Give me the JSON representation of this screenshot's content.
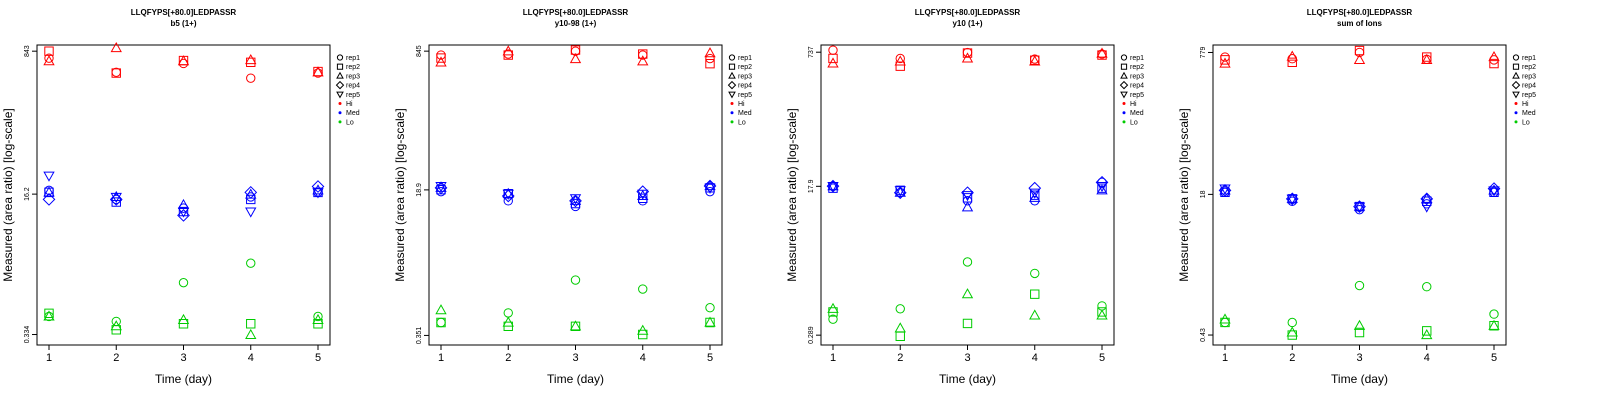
{
  "figure": {
    "xlabel": "Time (day)",
    "ylabel": "Measured (area ratio) [log-scale]"
  },
  "legend": {
    "reps": [
      {
        "label": "rep1",
        "shape": "circle"
      },
      {
        "label": "rep2",
        "shape": "square"
      },
      {
        "label": "rep3",
        "shape": "triangle-up"
      },
      {
        "label": "rep4",
        "shape": "diamond"
      },
      {
        "label": "rep5",
        "shape": "triangle-down"
      }
    ],
    "levels": [
      {
        "label": "Hi",
        "color": "#ff0000"
      },
      {
        "label": "Med",
        "color": "#0000ff"
      },
      {
        "label": "Lo",
        "color": "#00cc00"
      }
    ]
  },
  "colors": {
    "Hi": "#ff0000",
    "Med": "#0000ff",
    "Lo": "#00cc00",
    "axis": "#000000"
  },
  "chart_data": [
    {
      "type": "scatter",
      "title": "LLQFYPS[+80.0]LEDPASSR",
      "subtitle": "b5 (1+)",
      "xlabel": "Time (day)",
      "ylabel": "Measured (area ratio) [log-scale]",
      "x": [
        1,
        2,
        3,
        4,
        5
      ],
      "y_scale": "log",
      "y_ticks": [
        "0.334",
        "16.2",
        "843"
      ],
      "ylim": [
        0.25,
        1000
      ],
      "series": [
        {
          "level": "Hi",
          "rep": "rep1",
          "values": [
            695,
            470,
            600,
            400,
            460
          ]
        },
        {
          "level": "Hi",
          "rep": "rep2",
          "values": [
            843,
            460,
            650,
            620,
            480
          ]
        },
        {
          "level": "Hi",
          "rep": "rep3",
          "values": [
            640,
            920,
            640,
            660,
            470
          ]
        },
        {
          "level": "Med",
          "rep": "rep1",
          "values": [
            18,
            14,
            11,
            15,
            17
          ]
        },
        {
          "level": "Med",
          "rep": "rep2",
          "values": [
            17,
            13,
            10,
            14,
            17
          ]
        },
        {
          "level": "Med",
          "rep": "rep3",
          "values": [
            17,
            15,
            12,
            16,
            18
          ]
        },
        {
          "level": "Med",
          "rep": "rep4",
          "values": [
            14,
            14,
            9,
            17,
            20
          ]
        },
        {
          "level": "Med",
          "rep": "rep5",
          "values": [
            27,
            15,
            10,
            10,
            17
          ]
        },
        {
          "level": "Lo",
          "rep": "rep1",
          "values": [
            0.55,
            0.48,
            1.4,
            2.4,
            0.55
          ]
        },
        {
          "level": "Lo",
          "rep": "rep2",
          "values": [
            0.6,
            0.38,
            0.45,
            0.45,
            0.45
          ]
        },
        {
          "level": "Lo",
          "rep": "rep3",
          "values": [
            0.55,
            0.42,
            0.5,
            0.33,
            0.5
          ]
        }
      ]
    },
    {
      "type": "scatter",
      "title": "LLQFYPS[+80.0]LEDPASSR",
      "subtitle": "y10-98 (1+)",
      "xlabel": "Time (day)",
      "ylabel": "Measured (area ratio) [log-scale]",
      "x": [
        1,
        2,
        3,
        4,
        5
      ],
      "y_scale": "log",
      "y_ticks": [
        "0.351",
        "18.9",
        "845"
      ],
      "ylim": [
        0.27,
        1000
      ],
      "series": [
        {
          "level": "Hi",
          "rep": "rep1",
          "values": [
            760,
            780,
            845,
            760,
            690
          ]
        },
        {
          "level": "Hi",
          "rep": "rep2",
          "values": [
            700,
            760,
            870,
            780,
            600
          ]
        },
        {
          "level": "Hi",
          "rep": "rep3",
          "values": [
            620,
            840,
            680,
            640,
            800
          ]
        },
        {
          "level": "Med",
          "rep": "rep1",
          "values": [
            18,
            14,
            12,
            14,
            18
          ]
        },
        {
          "level": "Med",
          "rep": "rep2",
          "values": [
            19,
            17,
            13,
            15,
            20
          ]
        },
        {
          "level": "Med",
          "rep": "rep3",
          "values": [
            20,
            17,
            14,
            16,
            21
          ]
        },
        {
          "level": "Med",
          "rep": "rep4",
          "values": [
            20,
            16,
            14,
            18,
            21
          ]
        },
        {
          "level": "Med",
          "rep": "rep5",
          "values": [
            21,
            17,
            15,
            17,
            20
          ]
        },
        {
          "level": "Lo",
          "rep": "rep1",
          "values": [
            0.5,
            0.65,
            1.6,
            1.25,
            0.75
          ]
        },
        {
          "level": "Lo",
          "rep": "rep2",
          "values": [
            0.5,
            0.45,
            0.45,
            0.36,
            0.5
          ]
        },
        {
          "level": "Lo",
          "rep": "rep3",
          "values": [
            0.7,
            0.5,
            0.45,
            0.4,
            0.5
          ]
        }
      ]
    },
    {
      "type": "scatter",
      "title": "LLQFYPS[+80.0]LEDPASSR",
      "subtitle": "y10 (1+)",
      "xlabel": "Time (day)",
      "ylabel": "Measured (area ratio) [log-scale]",
      "x": [
        1,
        2,
        3,
        4,
        5
      ],
      "y_scale": "log",
      "y_ticks": [
        "0.289",
        "17.9",
        "737"
      ],
      "ylim": [
        0.22,
        900
      ],
      "series": [
        {
          "level": "Hi",
          "rep": "rep1",
          "values": [
            780,
            620,
            730,
            610,
            700
          ]
        },
        {
          "level": "Hi",
          "rep": "rep2",
          "values": [
            620,
            500,
            720,
            590,
            680
          ]
        },
        {
          "level": "Hi",
          "rep": "rep3",
          "values": [
            540,
            570,
            620,
            570,
            710
          ]
        },
        {
          "level": "Med",
          "rep": "rep1",
          "values": [
            18,
            15,
            12,
            12,
            20
          ]
        },
        {
          "level": "Med",
          "rep": "rep2",
          "values": [
            17,
            16,
            13,
            14,
            17
          ]
        },
        {
          "level": "Med",
          "rep": "rep3",
          "values": [
            18,
            15,
            10,
            13,
            16
          ]
        },
        {
          "level": "Med",
          "rep": "rep4",
          "values": [
            18,
            15,
            15,
            17,
            20
          ]
        },
        {
          "level": "Med",
          "rep": "rep5",
          "values": [
            18,
            16,
            14,
            15,
            18
          ]
        },
        {
          "level": "Lo",
          "rep": "rep1",
          "values": [
            0.45,
            0.6,
            2.2,
            1.6,
            0.65
          ]
        },
        {
          "level": "Lo",
          "rep": "rep2",
          "values": [
            0.55,
            0.28,
            0.4,
            0.9,
            0.55
          ]
        },
        {
          "level": "Lo",
          "rep": "rep3",
          "values": [
            0.6,
            0.35,
            0.9,
            0.5,
            0.5
          ]
        }
      ]
    },
    {
      "type": "scatter",
      "title": "LLQFYPS[+80.0]LEDPASSR",
      "subtitle": "sum of Ions",
      "xlabel": "Time (day)",
      "ylabel": "Measured (area ratio) [log-scale]",
      "x": [
        1,
        2,
        3,
        4,
        5
      ],
      "y_scale": "log",
      "y_ticks": [
        "0.43",
        "18",
        "779"
      ],
      "ylim": [
        0.33,
        950
      ],
      "series": [
        {
          "level": "Hi",
          "rep": "rep1",
          "values": [
            690,
            660,
            780,
            650,
            640
          ]
        },
        {
          "level": "Hi",
          "rep": "rep2",
          "values": [
            640,
            600,
            820,
            690,
            580
          ]
        },
        {
          "level": "Hi",
          "rep": "rep3",
          "values": [
            580,
            700,
            640,
            640,
            690
          ]
        },
        {
          "level": "Med",
          "rep": "rep1",
          "values": [
            19,
            15,
            12,
            14,
            19
          ]
        },
        {
          "level": "Med",
          "rep": "rep2",
          "values": [
            19,
            16,
            13,
            15,
            19
          ]
        },
        {
          "level": "Med",
          "rep": "rep3",
          "values": [
            20,
            16,
            13,
            16,
            20
          ]
        },
        {
          "level": "Med",
          "rep": "rep4",
          "values": [
            20,
            16,
            13,
            16,
            21
          ]
        },
        {
          "level": "Med",
          "rep": "rep5",
          "values": [
            21,
            16,
            13,
            13,
            20
          ]
        },
        {
          "level": "Lo",
          "rep": "rep1",
          "values": [
            0.6,
            0.6,
            1.6,
            1.55,
            0.75
          ]
        },
        {
          "level": "Lo",
          "rep": "rep2",
          "values": [
            0.6,
            0.43,
            0.46,
            0.48,
            0.55
          ]
        },
        {
          "level": "Lo",
          "rep": "rep3",
          "values": [
            0.65,
            0.46,
            0.55,
            0.43,
            0.55
          ]
        }
      ]
    }
  ]
}
